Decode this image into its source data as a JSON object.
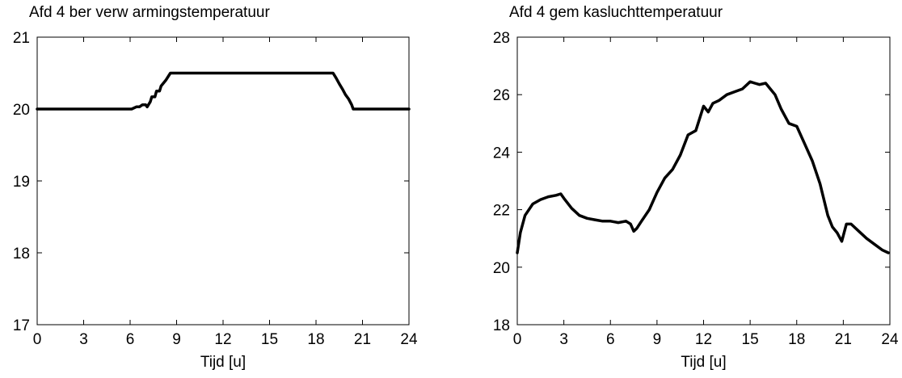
{
  "chart_data": [
    {
      "type": "line",
      "title": "Afd 4 ber verw armingstemperatuur",
      "xlabel": "Tijd [u]",
      "ylabel": "",
      "xlim": [
        0,
        24
      ],
      "ylim": [
        17,
        21
      ],
      "xticks": [
        0,
        3,
        6,
        9,
        12,
        15,
        18,
        21,
        24
      ],
      "yticks": [
        17,
        18,
        19,
        20,
        21
      ],
      "xtick_labels": [
        "0",
        "3",
        "6",
        "9",
        "12",
        "15",
        "18",
        "21",
        "24"
      ],
      "ytick_labels": [
        "17",
        "18",
        "19",
        "20",
        "21"
      ],
      "grid": false,
      "series": [
        {
          "color": "#000000",
          "x": [
            0,
            6.1,
            6.4,
            6.6,
            6.8,
            7.0,
            7.1,
            7.3,
            7.4,
            7.6,
            7.7,
            7.9,
            8.0,
            8.3,
            8.6,
            12.0,
            16.0,
            19.1,
            19.3,
            19.5,
            19.7,
            19.9,
            20.1,
            20.3,
            20.4,
            20.6,
            22.0,
            24.0
          ],
          "y": [
            20.0,
            20.0,
            20.03,
            20.03,
            20.06,
            20.06,
            20.03,
            20.1,
            20.17,
            20.17,
            20.25,
            20.25,
            20.32,
            20.4,
            20.5,
            20.5,
            20.5,
            20.5,
            20.43,
            20.35,
            20.28,
            20.2,
            20.14,
            20.06,
            20.0,
            20.0,
            20.0,
            20.0
          ]
        }
      ]
    },
    {
      "type": "line",
      "title": "Afd 4 gem kasluchttemperatuur",
      "xlabel": "Tijd [u]",
      "ylabel": "",
      "xlim": [
        0,
        24
      ],
      "ylim": [
        18,
        28
      ],
      "xticks": [
        0,
        3,
        6,
        9,
        12,
        15,
        18,
        21,
        24
      ],
      "yticks": [
        18,
        20,
        22,
        24,
        26,
        28
      ],
      "xtick_labels": [
        "0",
        "3",
        "6",
        "9",
        "12",
        "15",
        "18",
        "21",
        "24"
      ],
      "ytick_labels": [
        "18",
        "20",
        "22",
        "24",
        "26",
        "28"
      ],
      "grid": false,
      "series": [
        {
          "color": "#000000",
          "x": [
            0,
            0.2,
            0.5,
            1.0,
            1.5,
            2.0,
            2.5,
            2.8,
            3.0,
            3.5,
            4.0,
            4.5,
            5.0,
            5.5,
            6.0,
            6.5,
            7.0,
            7.3,
            7.5,
            7.7,
            8.0,
            8.5,
            9.0,
            9.5,
            10.0,
            10.5,
            11.0,
            11.5,
            12.0,
            12.3,
            12.6,
            13.0,
            13.5,
            14.0,
            14.5,
            15.0,
            15.3,
            15.6,
            16.0,
            16.3,
            16.6,
            17.0,
            17.5,
            18.0,
            18.5,
            19.0,
            19.5,
            20.0,
            20.3,
            20.6,
            20.9,
            21.2,
            21.5,
            22.0,
            22.5,
            23.0,
            23.5,
            23.9
          ],
          "y": [
            20.5,
            21.2,
            21.8,
            22.2,
            22.35,
            22.45,
            22.5,
            22.55,
            22.4,
            22.05,
            21.8,
            21.7,
            21.65,
            21.6,
            21.6,
            21.55,
            21.6,
            21.5,
            21.25,
            21.35,
            21.6,
            22.0,
            22.6,
            23.1,
            23.4,
            23.9,
            24.6,
            24.75,
            25.6,
            25.4,
            25.7,
            25.8,
            26.0,
            26.1,
            26.2,
            26.45,
            26.4,
            26.35,
            26.4,
            26.2,
            26.0,
            25.5,
            25.0,
            24.9,
            24.3,
            23.7,
            22.9,
            21.8,
            21.4,
            21.2,
            20.9,
            21.5,
            21.5,
            21.25,
            21.0,
            20.8,
            20.6,
            20.5
          ]
        }
      ]
    }
  ]
}
